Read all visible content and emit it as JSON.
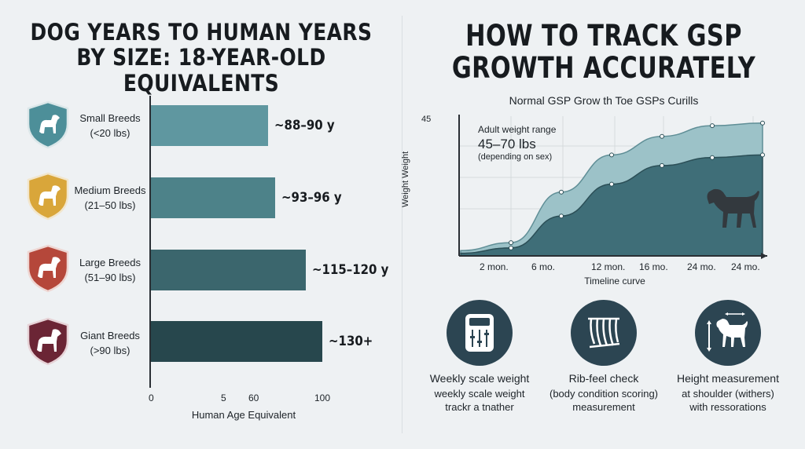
{
  "left": {
    "title_line1": "DOG YEARS TO HUMAN YEARS",
    "title_line2": "BY SIZE: 18-YEAR-OLD EQUIVALENTS"
  },
  "right": {
    "title_line1": "HOW TO TRACK GSP",
    "title_line2": "GROWTH ACCURATELY",
    "cards": [
      {
        "icon": "scale-icon",
        "line1": "Weekly scale weight",
        "line2": "weekly scale weight",
        "line3": "trackr a tnather"
      },
      {
        "icon": "ribcage-icon",
        "line1": "Rib-feel check",
        "line2": "(body condition scoring)",
        "line3": "measurement"
      },
      {
        "icon": "dog-height-icon",
        "line1": "Height measurement",
        "line2": "at shoulder (withers)",
        "line3": "with ressorations"
      }
    ]
  },
  "colors": {
    "small": "#4d8f99",
    "medium": "#d9a63a",
    "large": "#b5473a",
    "giant": "#6b2535",
    "bar_small": "#5f97a0",
    "bar_medium": "#4d8289",
    "bar_large": "#3b666d",
    "bar_giant": "#27474d",
    "band_light": "#9cc2c8",
    "band_dark": "#3f6e78",
    "card_circle": "#2c4552"
  },
  "chart_data": [
    {
      "type": "bar",
      "orientation": "horizontal",
      "title": "DOG YEARS TO HUMAN YEARS BY SIZE: 18-YEAR-OLD EQUIVALENTS",
      "categories": [
        {
          "name": "Small Breeds",
          "range": "(<20 lbs)",
          "icon": "dog-shield-icon"
        },
        {
          "name": "Medium Breeds",
          "range": "(21–50 lbs)",
          "icon": "dog-shield-icon"
        },
        {
          "name": "Large Breeds",
          "range": "(51–90 lbs)",
          "icon": "dog-shield-icon"
        },
        {
          "name": "Giant Breeds",
          "range": "(>90 lbs)",
          "icon": "dog-shield-icon"
        }
      ],
      "values": [
        89,
        94.5,
        117.5,
        130
      ],
      "value_labels": [
        "~88–90 y",
        "~93–96 y",
        "~115–120 y",
        "~130+"
      ],
      "xlabel": "Human Age Equivalent",
      "xticks": [
        "0",
        "5",
        "60",
        "100"
      ],
      "xlim": [
        0,
        130
      ]
    },
    {
      "type": "area",
      "title": "Normal GSP Grow th Toe GSPs Curills",
      "ylabel": "Weight Weight",
      "xlabel": "Timeline curve",
      "ytick": "45",
      "xticks": [
        "2 mon.",
        "6 mo.",
        "12 mon.",
        "16 mo.",
        "24 mo.",
        "24 mo."
      ],
      "series": [
        {
          "values": [
            2,
            5,
            24,
            38,
            45,
            49,
            50
          ]
        },
        {
          "values": [
            1,
            3,
            15,
            27,
            34,
            37,
            38
          ]
        }
      ],
      "annotation": {
        "line1": "Adult weight range",
        "line2": "45–70 lbs",
        "line3": "(depending on sex)"
      }
    }
  ]
}
